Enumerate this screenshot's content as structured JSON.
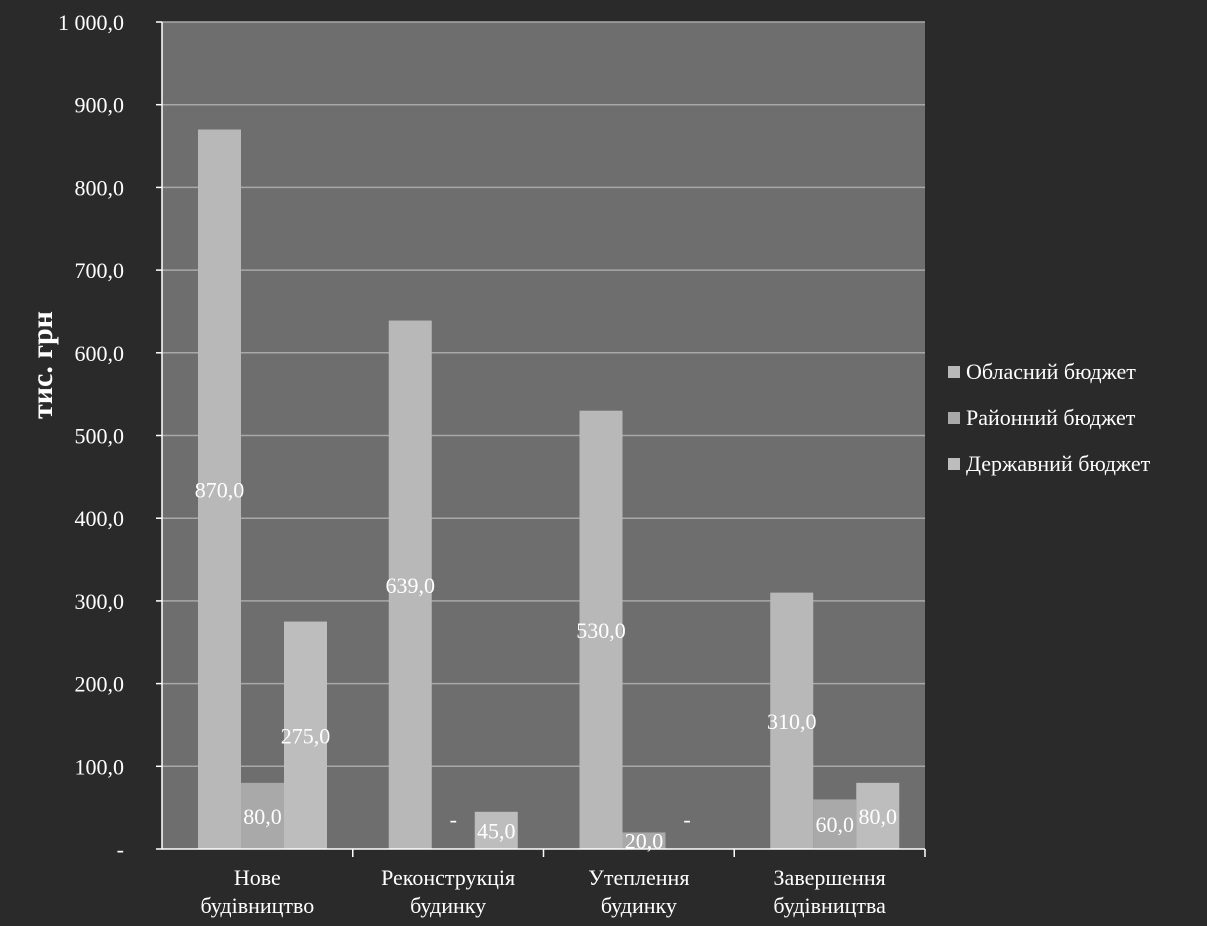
{
  "chart_data": {
    "type": "bar",
    "ylabel": "тис. грн",
    "xlabel": "",
    "ylim": [
      0,
      1000
    ],
    "y_ticks": [
      "-",
      "100,0",
      "200,0",
      "300,0",
      "400,0",
      "500,0",
      "600,0",
      "700,0",
      "800,0",
      "900,0",
      "1 000,0"
    ],
    "grid": true,
    "legend_position": "right",
    "categories": [
      [
        "Нове",
        "будівництво"
      ],
      [
        "Реконструкція",
        "будинку"
      ],
      [
        "Утеплення",
        "будинку"
      ],
      [
        "Завершення",
        "будівництва"
      ]
    ],
    "series": [
      {
        "name": "Обласний бюджет",
        "values": [
          870,
          639,
          530,
          310
        ],
        "labels": [
          "870,0",
          "639,0",
          "530,0",
          "310,0"
        ],
        "color": "#b8b8b8"
      },
      {
        "name": "Районний бюджет",
        "values": [
          80,
          0,
          20,
          60
        ],
        "labels": [
          "80,0",
          "-",
          "20,0",
          "60,0"
        ],
        "color": "#a9a9a9"
      },
      {
        "name": "Державний бюджет",
        "values": [
          275,
          45,
          0,
          80
        ],
        "labels": [
          "275,0",
          "45,0",
          "-",
          "80,0"
        ],
        "color": "#bdbdbd"
      }
    ],
    "colors": {
      "page": "#2a2a2a",
      "plot": "#6e6e6e",
      "grid": "#a8a8a8",
      "text": "#ffffff"
    }
  }
}
